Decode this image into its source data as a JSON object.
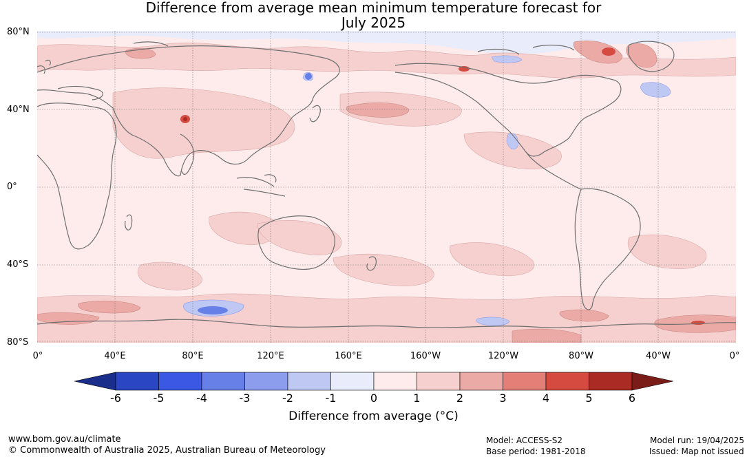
{
  "title": {
    "line1": "Difference from average mean minimum temperature forecast for",
    "line2": "July 2025"
  },
  "map": {
    "lat_labels": [
      "80°N",
      "40°N",
      "0°",
      "40°S",
      "80°S"
    ],
    "lon_labels": [
      "0°",
      "40°E",
      "80°E",
      "120°E",
      "160°E",
      "160°W",
      "120°W",
      "80°W",
      "40°W",
      "0°"
    ]
  },
  "colorbar": {
    "ticks": [
      "-6",
      "-5",
      "-4",
      "-3",
      "-2",
      "-1",
      "0",
      "1",
      "2",
      "3",
      "4",
      "5",
      "6"
    ],
    "colors": [
      "#1a2d8a",
      "#2b46c2",
      "#3a58e4",
      "#6680e8",
      "#8b9dec",
      "#bfc8f3",
      "#e9ecfb",
      "#fdeceb",
      "#f5d0cf",
      "#ebaaa6",
      "#e47f78",
      "#d64b40",
      "#aa2a24",
      "#7a1c18"
    ],
    "label": "Difference from average (°C)"
  },
  "footer": {
    "url": "www.bom.gov.au/climate",
    "copyright": "© Commonwealth of Australia 2025, Australian Bureau of Meteorology",
    "model": "Model: ACCESS-S2",
    "base_period": "Base period: 1981-2018",
    "model_run": "Model run: 19/04/2025",
    "issued": "Issued: Map not issued"
  }
}
